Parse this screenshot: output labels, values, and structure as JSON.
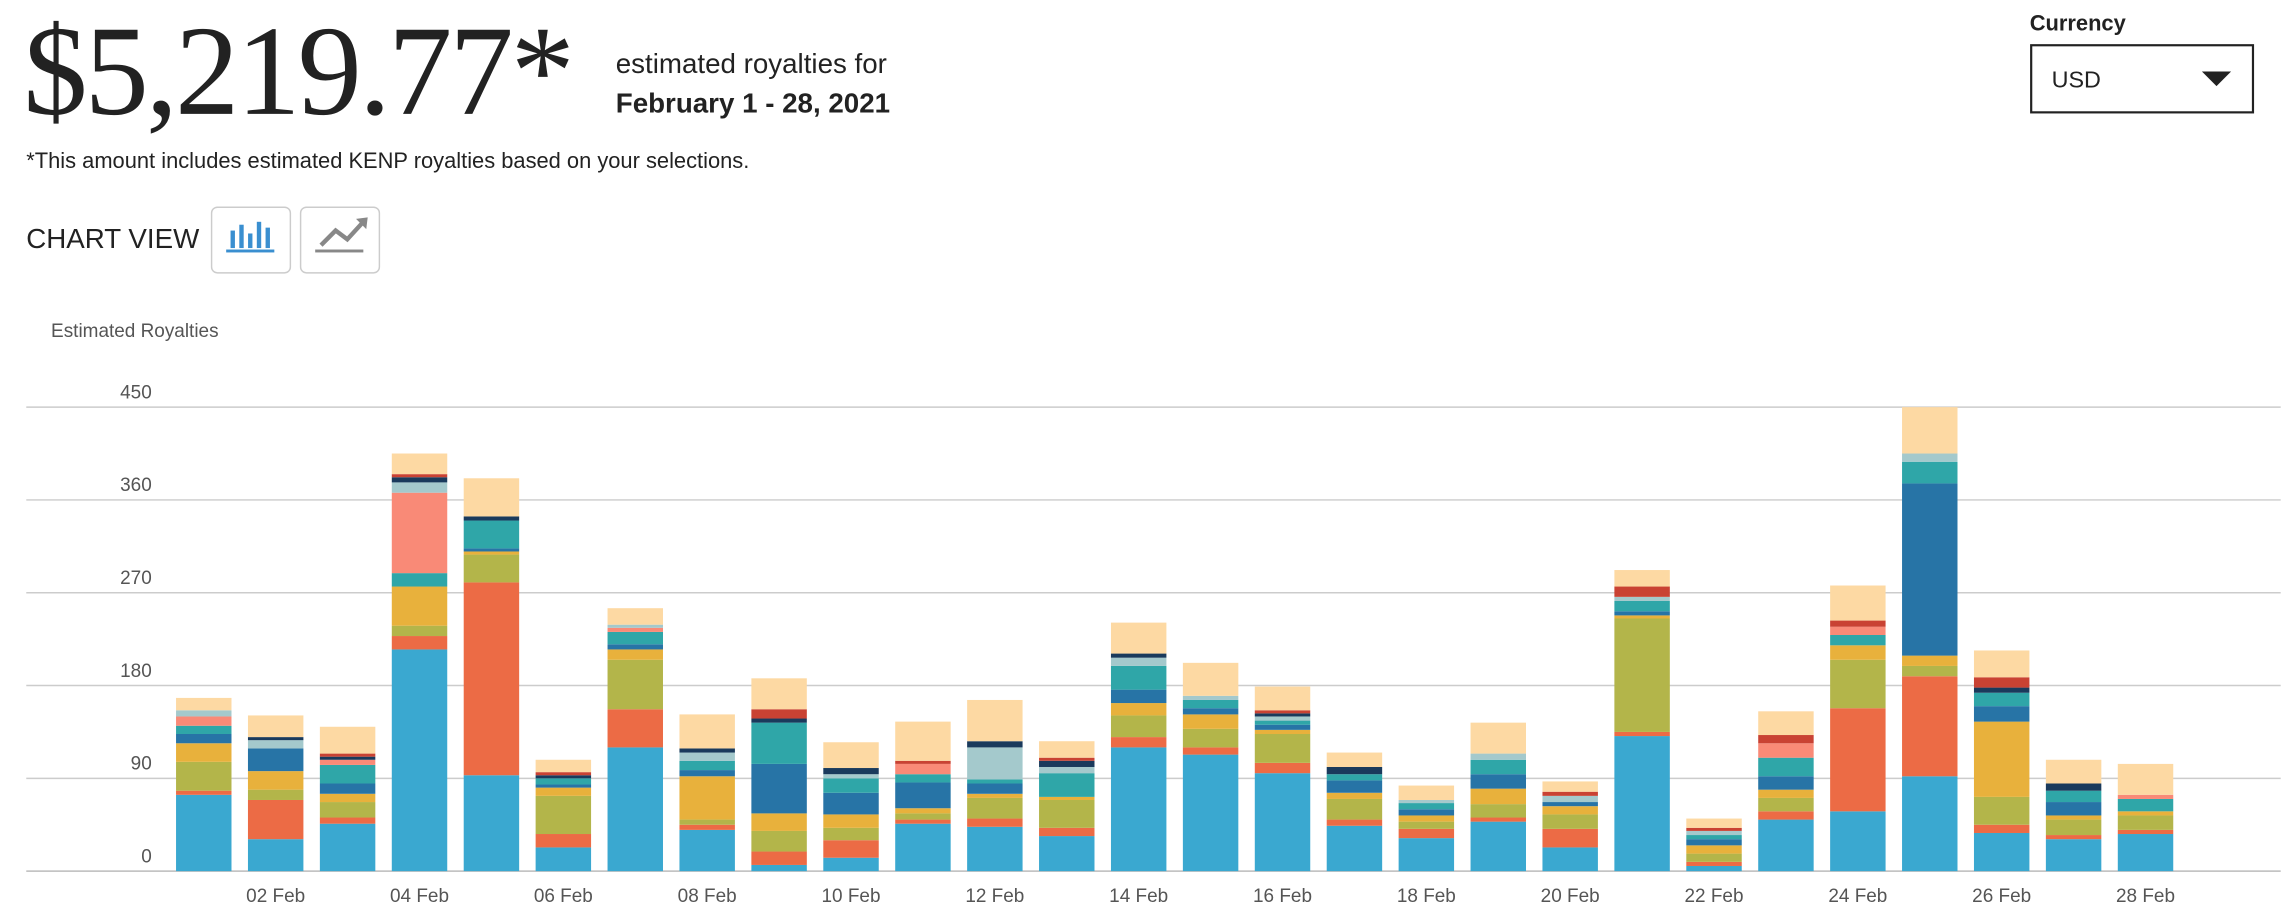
{
  "header": {
    "amount": "$5,219.77*",
    "label": "estimated royalties for",
    "period": "February 1 - 28, 2021",
    "note": "*This amount includes estimated KENP royalties based on your selections.",
    "chart_view": "CHART VIEW"
  },
  "currency": {
    "label": "Currency",
    "selected": "USD"
  },
  "chart_data": {
    "type": "stacked-bar",
    "y_label": "Estimated Royalties",
    "categories": [
      null,
      "02 Feb",
      null,
      "04 Feb",
      null,
      "06 Feb",
      null,
      "08 Feb",
      null,
      "10 Feb",
      null,
      "12 Feb",
      null,
      "14 Feb",
      null,
      "16 Feb",
      null,
      "18 Feb",
      null,
      "20 Feb",
      null,
      "22 Feb",
      null,
      "24 Feb",
      null,
      "26 Feb",
      null,
      "28 Feb"
    ],
    "ylim": [
      0,
      450
    ],
    "yticks": [
      0,
      90,
      180,
      270,
      360,
      450
    ],
    "grid": true,
    "series": [
      {
        "color": "#3aa8d0",
        "values": [
          74,
          31,
          46,
          215,
          93,
          23,
          120,
          40,
          6,
          13,
          46,
          43,
          34,
          120,
          113,
          95,
          44,
          32,
          48,
          23,
          131,
          5,
          50,
          58,
          92,
          37,
          31,
          36
        ]
      },
      {
        "color": "#ec6b45",
        "values": [
          4,
          38,
          6,
          13,
          187,
          13,
          37,
          5,
          13,
          17,
          4,
          8,
          8,
          10,
          7,
          10,
          6,
          9,
          4,
          18,
          4,
          4,
          8,
          100,
          97,
          8,
          4,
          4
        ]
      },
      {
        "color": "#b3b54a",
        "values": [
          28,
          10,
          15,
          10,
          27,
          37,
          48,
          5,
          20,
          12,
          6,
          20,
          27,
          21,
          18,
          28,
          20,
          7,
          13,
          14,
          110,
          8,
          13,
          47,
          10,
          27,
          15,
          14
        ]
      },
      {
        "color": "#e8b13c",
        "values": [
          18,
          18,
          8,
          38,
          3,
          8,
          10,
          42,
          17,
          13,
          5,
          4,
          3,
          12,
          14,
          4,
          6,
          6,
          15,
          8,
          3,
          8,
          8,
          14,
          10,
          73,
          4,
          4
        ]
      },
      {
        "color": "#2774a6",
        "values": [
          9,
          22,
          10,
          0,
          3,
          3,
          5,
          6,
          48,
          21,
          25,
          10,
          0,
          13,
          6,
          5,
          12,
          6,
          14,
          4,
          4,
          6,
          13,
          0,
          167,
          15,
          13,
          0
        ]
      },
      {
        "color": "#2fa6a8",
        "values": [
          8,
          0,
          18,
          13,
          27,
          6,
          12,
          9,
          40,
          14,
          8,
          4,
          23,
          23,
          8,
          4,
          6,
          6,
          14,
          0,
          10,
          4,
          18,
          10,
          21,
          13,
          11,
          12
        ]
      },
      {
        "color": "#f98a77",
        "values": [
          9,
          0,
          5,
          78,
          0,
          0,
          4,
          0,
          0,
          0,
          10,
          0,
          0,
          0,
          0,
          0,
          0,
          0,
          0,
          0,
          0,
          0,
          14,
          8,
          0,
          0,
          0,
          4
        ]
      },
      {
        "color": "#a4c9cc",
        "values": [
          6,
          8,
          0,
          10,
          0,
          0,
          3,
          8,
          0,
          4,
          0,
          31,
          6,
          8,
          4,
          4,
          0,
          3,
          6,
          6,
          4,
          4,
          0,
          0,
          8,
          0,
          0,
          0
        ]
      },
      {
        "color": "#1a3a5c",
        "values": [
          0,
          3,
          3,
          5,
          4,
          3,
          0,
          4,
          4,
          6,
          0,
          6,
          6,
          4,
          0,
          3,
          7,
          0,
          0,
          0,
          0,
          0,
          0,
          0,
          0,
          5,
          7,
          0
        ]
      },
      {
        "color": "#c94233",
        "values": [
          0,
          0,
          3,
          3,
          0,
          3,
          0,
          0,
          9,
          0,
          3,
          0,
          3,
          0,
          0,
          3,
          0,
          0,
          0,
          4,
          10,
          3,
          8,
          6,
          0,
          10,
          0,
          0
        ]
      },
      {
        "color": "#fdd9a3",
        "values": [
          12,
          21,
          26,
          20,
          37,
          12,
          16,
          33,
          30,
          25,
          38,
          40,
          16,
          30,
          32,
          23,
          14,
          14,
          30,
          10,
          16,
          9,
          23,
          34,
          45,
          26,
          23,
          30
        ]
      }
    ]
  }
}
